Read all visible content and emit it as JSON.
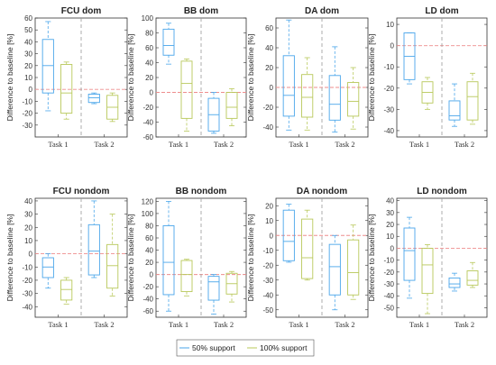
{
  "colors": {
    "support_50": "#4aa6ea",
    "support_100": "#b8c85a",
    "baseline": "#ee8d8d",
    "divider": "#999999",
    "axis": "#333333"
  },
  "legend": {
    "items": [
      "50% support",
      "100% support"
    ],
    "placement": "bottom-center"
  },
  "chart_data": [
    {
      "type": "boxplot",
      "title": "FCU dom",
      "ylabel": "Difference to baseline [%]",
      "ylim": [
        -40,
        60
      ],
      "yticks": [
        -30,
        -20,
        -10,
        0,
        10,
        20,
        30,
        40,
        50,
        60
      ],
      "categories": [
        "Task 1",
        "Task 2"
      ],
      "series": [
        {
          "name": "50% support",
          "boxes": [
            {
              "task": "Task 1",
              "min": -18,
              "q1": -3,
              "median": 20,
              "q3": 42,
              "max": 57
            },
            {
              "task": "Task 2",
              "min": -12,
              "q1": -11,
              "median": -7,
              "q3": -4,
              "max": -3
            }
          ]
        },
        {
          "name": "100% support",
          "boxes": [
            {
              "task": "Task 1",
              "min": -25,
              "q1": -20,
              "median": -3,
              "q3": 21,
              "max": 23
            },
            {
              "task": "Task 2",
              "min": -27,
              "q1": -25,
              "median": -15,
              "q3": -5,
              "max": -3
            }
          ]
        }
      ]
    },
    {
      "type": "boxplot",
      "title": "BB dom",
      "ylabel": "Difference to baseline [%]",
      "ylim": [
        -60,
        100
      ],
      "yticks": [
        -60,
        -40,
        -20,
        0,
        20,
        40,
        60,
        80,
        100
      ],
      "categories": [
        "Task 1",
        "Task 2"
      ],
      "series": [
        {
          "name": "50% support",
          "boxes": [
            {
              "task": "Task 1",
              "min": 38,
              "q1": 50,
              "median": 63,
              "q3": 85,
              "max": 93
            },
            {
              "task": "Task 2",
              "min": -55,
              "q1": -52,
              "median": -30,
              "q3": -8,
              "max": 0
            }
          ]
        },
        {
          "name": "100% support",
          "boxes": [
            {
              "task": "Task 1",
              "min": -52,
              "q1": -35,
              "median": 12,
              "q3": 42,
              "max": 45
            },
            {
              "task": "Task 2",
              "min": -45,
              "q1": -35,
              "median": -20,
              "q3": 0,
              "max": 5
            }
          ]
        }
      ]
    },
    {
      "type": "boxplot",
      "title": "DA dom",
      "ylabel": "Difference to baseline [%]",
      "ylim": [
        -50,
        70
      ],
      "yticks": [
        -40,
        -20,
        0,
        20,
        40,
        60
      ],
      "categories": [
        "Task 1",
        "Task 2"
      ],
      "series": [
        {
          "name": "50% support",
          "boxes": [
            {
              "task": "Task 1",
              "min": -43,
              "q1": -29,
              "median": -8,
              "q3": 32,
              "max": 68
            },
            {
              "task": "Task 2",
              "min": -45,
              "q1": -33,
              "median": -17,
              "q3": 12,
              "max": 41
            }
          ]
        },
        {
          "name": "100% support",
          "boxes": [
            {
              "task": "Task 1",
              "min": -43,
              "q1": -30,
              "median": -10,
              "q3": 13,
              "max": 30
            },
            {
              "task": "Task 2",
              "min": -42,
              "q1": -29,
              "median": -14,
              "q3": 5,
              "max": 20
            }
          ]
        }
      ]
    },
    {
      "type": "boxplot",
      "title": "LD dom",
      "ylabel": "Difference to baseline [%]",
      "ylim": [
        -43,
        13
      ],
      "yticks": [
        -40,
        -30,
        -20,
        -10,
        0,
        10
      ],
      "categories": [
        "Task 1",
        "Task 2"
      ],
      "series": [
        {
          "name": "50% support",
          "boxes": [
            {
              "task": "Task 1",
              "min": -18,
              "q1": -16,
              "median": -5,
              "q3": 6,
              "max": 6
            },
            {
              "task": "Task 2",
              "min": -38,
              "q1": -35,
              "median": -33,
              "q3": -26,
              "max": -18
            }
          ]
        },
        {
          "name": "100% support",
          "boxes": [
            {
              "task": "Task 1",
              "min": -30,
              "q1": -27,
              "median": -22,
              "q3": -17,
              "max": -15
            },
            {
              "task": "Task 2",
              "min": -37,
              "q1": -35,
              "median": -24,
              "q3": -17,
              "max": -13
            }
          ]
        }
      ]
    },
    {
      "type": "boxplot",
      "title": "FCU nondom",
      "ylabel": "Difference to baseline [%]",
      "ylim": [
        -48,
        42
      ],
      "yticks": [
        -40,
        -30,
        -20,
        -10,
        0,
        10,
        20,
        30,
        40
      ],
      "categories": [
        "Task 1",
        "Task 2"
      ],
      "series": [
        {
          "name": "50% support",
          "boxes": [
            {
              "task": "Task 1",
              "min": -26,
              "q1": -18,
              "median": -10,
              "q3": -3,
              "max": 0
            },
            {
              "task": "Task 2",
              "min": -18,
              "q1": -16,
              "median": 2,
              "q3": 22,
              "max": 40
            }
          ]
        },
        {
          "name": "100% support",
          "boxes": [
            {
              "task": "Task 1",
              "min": -38,
              "q1": -35,
              "median": -27,
              "q3": -20,
              "max": -18
            },
            {
              "task": "Task 2",
              "min": -32,
              "q1": -26,
              "median": -9,
              "q3": 7,
              "max": 30
            }
          ]
        }
      ]
    },
    {
      "type": "boxplot",
      "title": "BB nondom",
      "ylabel": "Difference to baseline [%]",
      "ylim": [
        -70,
        125
      ],
      "yticks": [
        -60,
        -40,
        -20,
        0,
        20,
        40,
        60,
        80,
        100,
        120
      ],
      "categories": [
        "Task 1",
        "Task 2"
      ],
      "series": [
        {
          "name": "50% support",
          "boxes": [
            {
              "task": "Task 1",
              "min": -60,
              "q1": -33,
              "median": 20,
              "q3": 80,
              "max": 120
            },
            {
              "task": "Task 2",
              "min": -65,
              "q1": -42,
              "median": -12,
              "q3": -3,
              "max": 0
            }
          ]
        },
        {
          "name": "100% support",
          "boxes": [
            {
              "task": "Task 1",
              "min": -35,
              "q1": -28,
              "median": 0,
              "q3": 23,
              "max": 25
            },
            {
              "task": "Task 2",
              "min": -45,
              "q1": -32,
              "median": -15,
              "q3": 2,
              "max": 5
            }
          ]
        }
      ]
    },
    {
      "type": "boxplot",
      "title": "DA nondom",
      "ylabel": "Difference to baseline [%]",
      "ylim": [
        -55,
        25
      ],
      "yticks": [
        -50,
        -40,
        -30,
        -20,
        -10,
        0,
        10,
        20
      ],
      "categories": [
        "Task 1",
        "Task 2"
      ],
      "series": [
        {
          "name": "50% support",
          "boxes": [
            {
              "task": "Task 1",
              "min": -18,
              "q1": -17,
              "median": -4,
              "q3": 17,
              "max": 21
            },
            {
              "task": "Task 2",
              "min": -50,
              "q1": -40,
              "median": -21,
              "q3": -6,
              "max": 0
            }
          ]
        },
        {
          "name": "100% support",
          "boxes": [
            {
              "task": "Task 1",
              "min": -30,
              "q1": -29,
              "median": -15,
              "q3": 11,
              "max": 17
            },
            {
              "task": "Task 2",
              "min": -43,
              "q1": -40,
              "median": -25,
              "q3": -3,
              "max": 7
            }
          ]
        }
      ]
    },
    {
      "type": "boxplot",
      "title": "LD nondom",
      "ylabel": "Difference to baseline [%]",
      "ylim": [
        -58,
        42
      ],
      "yticks": [
        -50,
        -40,
        -30,
        -20,
        -10,
        0,
        10,
        20,
        30,
        40
      ],
      "categories": [
        "Task 1",
        "Task 2"
      ],
      "series": [
        {
          "name": "50% support",
          "boxes": [
            {
              "task": "Task 1",
              "min": -42,
              "q1": -27,
              "median": -2,
              "q3": 17,
              "max": 26
            },
            {
              "task": "Task 2",
              "min": -36,
              "q1": -33,
              "median": -30,
              "q3": -25,
              "max": -21
            }
          ]
        },
        {
          "name": "100% support",
          "boxes": [
            {
              "task": "Task 1",
              "min": -55,
              "q1": -38,
              "median": -14,
              "q3": 0,
              "max": 3
            },
            {
              "task": "Task 2",
              "min": -33,
              "q1": -31,
              "median": -27,
              "q3": -19,
              "max": -12
            }
          ]
        }
      ]
    }
  ]
}
